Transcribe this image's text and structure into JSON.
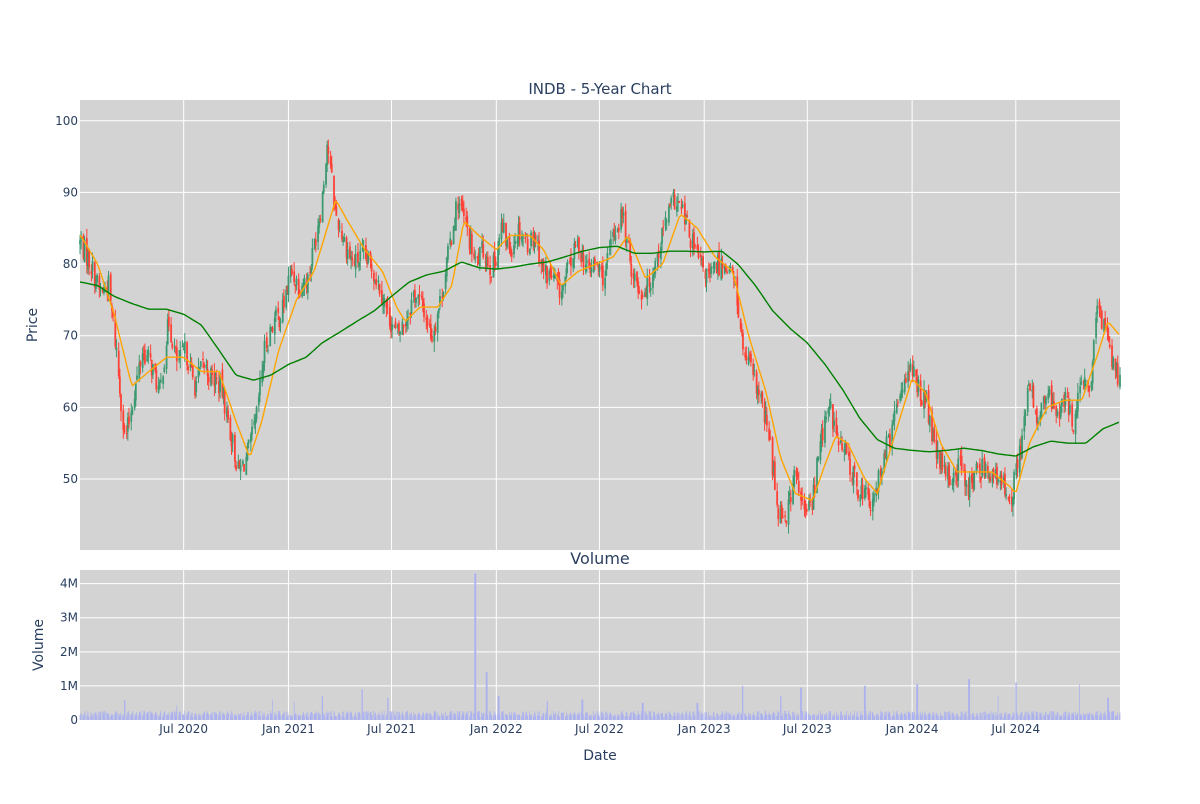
{
  "chart_data": [
    {
      "type": "candlestick",
      "title": "INDB - 5-Year Chart",
      "ylabel": "Price",
      "ylim": [
        40.1,
        102.9
      ],
      "xlim": [
        "2020-01-01",
        "2024-12-31"
      ],
      "yticks": [
        50,
        60,
        70,
        80,
        90,
        100
      ],
      "yticklabels": [
        "50",
        "60",
        "70",
        "80",
        "90",
        "100"
      ],
      "grid": true,
      "legend": "none",
      "colors": {
        "background": "#d3d3d3",
        "up": "#3d9970",
        "down": "#ff4136",
        "ma_short": "#ffa500",
        "ma_long": "#008000",
        "grid": "#ffffff"
      },
      "close_points": [
        [
          "2020-01-02",
          83
        ],
        [
          "2020-01-20",
          80
        ],
        [
          "2020-02-05",
          76
        ],
        [
          "2020-02-20",
          77
        ],
        [
          "2020-03-05",
          68
        ],
        [
          "2020-03-20",
          55
        ],
        [
          "2020-04-05",
          62
        ],
        [
          "2020-04-20",
          68
        ],
        [
          "2020-05-05",
          66
        ],
        [
          "2020-05-20",
          62
        ],
        [
          "2020-06-05",
          72
        ],
        [
          "2020-06-20",
          66
        ],
        [
          "2020-07-05",
          68
        ],
        [
          "2020-07-20",
          63
        ],
        [
          "2020-08-05",
          66
        ],
        [
          "2020-08-20",
          64
        ],
        [
          "2020-09-05",
          63
        ],
        [
          "2020-09-20",
          57
        ],
        [
          "2020-10-05",
          51
        ],
        [
          "2020-10-20",
          53
        ],
        [
          "2020-11-05",
          58
        ],
        [
          "2020-11-20",
          68
        ],
        [
          "2020-12-05",
          72
        ],
        [
          "2020-12-20",
          73
        ],
        [
          "2021-01-05",
          79
        ],
        [
          "2021-01-20",
          77
        ],
        [
          "2021-02-05",
          78
        ],
        [
          "2021-02-20",
          85
        ],
        [
          "2021-03-01",
          89
        ],
        [
          "2021-03-10",
          97
        ],
        [
          "2021-03-25",
          87
        ],
        [
          "2021-04-10",
          83
        ],
        [
          "2021-04-25",
          80
        ],
        [
          "2021-05-10",
          81
        ],
        [
          "2021-05-25",
          80
        ],
        [
          "2021-06-10",
          77
        ],
        [
          "2021-06-25",
          73
        ],
        [
          "2021-07-10",
          70
        ],
        [
          "2021-07-25",
          72
        ],
        [
          "2021-08-10",
          76
        ],
        [
          "2021-08-25",
          74
        ],
        [
          "2021-09-10",
          70
        ],
        [
          "2021-09-25",
          75
        ],
        [
          "2021-10-10",
          82
        ],
        [
          "2021-10-25",
          89
        ],
        [
          "2021-11-10",
          85
        ],
        [
          "2021-11-25",
          80
        ],
        [
          "2021-12-10",
          82
        ],
        [
          "2021-12-25",
          79
        ],
        [
          "2022-01-10",
          85
        ],
        [
          "2022-01-25",
          82
        ],
        [
          "2022-02-10",
          85
        ],
        [
          "2022-02-25",
          83
        ],
        [
          "2022-03-10",
          84
        ],
        [
          "2022-03-25",
          79
        ],
        [
          "2022-04-10",
          78
        ],
        [
          "2022-04-25",
          76
        ],
        [
          "2022-05-10",
          80
        ],
        [
          "2022-05-25",
          83
        ],
        [
          "2022-06-10",
          79
        ],
        [
          "2022-06-25",
          80
        ],
        [
          "2022-07-10",
          78
        ],
        [
          "2022-07-25",
          84
        ],
        [
          "2022-08-10",
          87
        ],
        [
          "2022-08-25",
          80
        ],
        [
          "2022-09-10",
          76
        ],
        [
          "2022-09-25",
          77
        ],
        [
          "2022-10-10",
          81
        ],
        [
          "2022-10-25",
          86
        ],
        [
          "2022-11-10",
          89
        ],
        [
          "2022-11-25",
          87
        ],
        [
          "2022-12-10",
          83
        ],
        [
          "2022-12-25",
          80
        ],
        [
          "2023-01-10",
          78
        ],
        [
          "2023-01-25",
          80
        ],
        [
          "2023-02-10",
          80
        ],
        [
          "2023-02-25",
          77
        ],
        [
          "2023-03-10",
          68
        ],
        [
          "2023-03-25",
          65
        ],
        [
          "2023-04-10",
          61
        ],
        [
          "2023-04-25",
          56
        ],
        [
          "2023-05-10",
          46
        ],
        [
          "2023-05-25",
          45
        ],
        [
          "2023-06-10",
          51
        ],
        [
          "2023-06-25",
          45
        ],
        [
          "2023-07-10",
          47
        ],
        [
          "2023-07-25",
          56
        ],
        [
          "2023-08-10",
          60
        ],
        [
          "2023-08-25",
          55
        ],
        [
          "2023-09-10",
          53
        ],
        [
          "2023-09-25",
          49
        ],
        [
          "2023-10-10",
          48
        ],
        [
          "2023-10-25",
          46
        ],
        [
          "2023-11-10",
          53
        ],
        [
          "2023-11-25",
          56
        ],
        [
          "2023-12-10",
          62
        ],
        [
          "2023-12-25",
          66
        ],
        [
          "2024-01-10",
          63
        ],
        [
          "2024-01-25",
          61
        ],
        [
          "2024-02-10",
          54
        ],
        [
          "2024-02-25",
          51
        ],
        [
          "2024-03-10",
          50
        ],
        [
          "2024-03-25",
          52
        ],
        [
          "2024-04-10",
          49
        ],
        [
          "2024-04-25",
          51
        ],
        [
          "2024-05-10",
          52
        ],
        [
          "2024-05-25",
          50
        ],
        [
          "2024-06-10",
          49
        ],
        [
          "2024-06-25",
          48
        ],
        [
          "2024-07-10",
          55
        ],
        [
          "2024-07-25",
          63
        ],
        [
          "2024-08-10",
          58
        ],
        [
          "2024-08-25",
          62
        ],
        [
          "2024-09-10",
          59
        ],
        [
          "2024-09-25",
          61
        ],
        [
          "2024-10-10",
          58
        ],
        [
          "2024-10-25",
          63
        ],
        [
          "2024-11-10",
          63
        ],
        [
          "2024-11-20",
          73
        ],
        [
          "2024-12-05",
          72
        ],
        [
          "2024-12-20",
          66
        ],
        [
          "2024-12-31",
          64
        ]
      ],
      "ma_short_points": [
        [
          "2020-01-02",
          84
        ],
        [
          "2020-02-01",
          80
        ],
        [
          "2020-03-01",
          73
        ],
        [
          "2020-04-01",
          63
        ],
        [
          "2020-05-01",
          65
        ],
        [
          "2020-06-01",
          67
        ],
        [
          "2020-07-01",
          67
        ],
        [
          "2020-08-01",
          65
        ],
        [
          "2020-09-01",
          65
        ],
        [
          "2020-10-01",
          58
        ],
        [
          "2020-10-25",
          53
        ],
        [
          "2020-11-15",
          58
        ],
        [
          "2020-12-15",
          68
        ],
        [
          "2021-01-15",
          75
        ],
        [
          "2021-02-15",
          79
        ],
        [
          "2021-03-10",
          85
        ],
        [
          "2021-03-25",
          89
        ],
        [
          "2021-04-15",
          86
        ],
        [
          "2021-05-15",
          82
        ],
        [
          "2021-06-15",
          79
        ],
        [
          "2021-07-10",
          74
        ],
        [
          "2021-07-25",
          72
        ],
        [
          "2021-08-20",
          74
        ],
        [
          "2021-09-20",
          74
        ],
        [
          "2021-10-15",
          77
        ],
        [
          "2021-11-05",
          86
        ],
        [
          "2021-12-01",
          84
        ],
        [
          "2022-01-01",
          82
        ],
        [
          "2022-01-25",
          84
        ],
        [
          "2022-03-01",
          84
        ],
        [
          "2022-03-25",
          82
        ],
        [
          "2022-04-25",
          77
        ],
        [
          "2022-05-25",
          79
        ],
        [
          "2022-06-25",
          80
        ],
        [
          "2022-07-25",
          81
        ],
        [
          "2022-08-20",
          84
        ],
        [
          "2022-09-20",
          78
        ],
        [
          "2022-10-20",
          80
        ],
        [
          "2022-11-20",
          87
        ],
        [
          "2022-12-20",
          85
        ],
        [
          "2023-01-20",
          81
        ],
        [
          "2023-02-20",
          79
        ],
        [
          "2023-03-20",
          70
        ],
        [
          "2023-04-20",
          62
        ],
        [
          "2023-05-15",
          53
        ],
        [
          "2023-06-10",
          48
        ],
        [
          "2023-07-10",
          47
        ],
        [
          "2023-08-01",
          52
        ],
        [
          "2023-08-20",
          56
        ],
        [
          "2023-09-10",
          55
        ],
        [
          "2023-10-10",
          50
        ],
        [
          "2023-11-01",
          48
        ],
        [
          "2023-12-01",
          56
        ],
        [
          "2024-01-01",
          64
        ],
        [
          "2024-01-25",
          62
        ],
        [
          "2024-02-20",
          55
        ],
        [
          "2024-03-20",
          51
        ],
        [
          "2024-04-20",
          51
        ],
        [
          "2024-05-20",
          51
        ],
        [
          "2024-06-20",
          49
        ],
        [
          "2024-07-01",
          48
        ],
        [
          "2024-07-25",
          55
        ],
        [
          "2024-08-25",
          60
        ],
        [
          "2024-09-25",
          61
        ],
        [
          "2024-10-25",
          61
        ],
        [
          "2024-11-20",
          67
        ],
        [
          "2024-12-10",
          72
        ],
        [
          "2024-12-31",
          70
        ]
      ],
      "ma_long_points": [
        [
          "2020-01-02",
          77.5
        ],
        [
          "2020-02-01",
          77
        ],
        [
          "2020-03-01",
          75.5
        ],
        [
          "2020-04-01",
          74.5
        ],
        [
          "2020-05-01",
          73.7
        ],
        [
          "2020-06-01",
          73.7
        ],
        [
          "2020-07-01",
          73
        ],
        [
          "2020-08-01",
          71.5
        ],
        [
          "2020-09-01",
          68
        ],
        [
          "2020-10-01",
          64.5
        ],
        [
          "2020-11-01",
          63.8
        ],
        [
          "2020-12-01",
          64.5
        ],
        [
          "2021-01-01",
          66
        ],
        [
          "2021-02-01",
          67
        ],
        [
          "2021-03-01",
          69
        ],
        [
          "2021-04-01",
          70.5
        ],
        [
          "2021-05-01",
          72
        ],
        [
          "2021-06-01",
          73.5
        ],
        [
          "2021-07-01",
          75.5
        ],
        [
          "2021-08-01",
          77.5
        ],
        [
          "2021-09-01",
          78.5
        ],
        [
          "2021-10-01",
          79
        ],
        [
          "2021-11-01",
          80.3
        ],
        [
          "2021-12-01",
          79.5
        ],
        [
          "2022-01-01",
          79.3
        ],
        [
          "2022-02-01",
          79.6
        ],
        [
          "2022-03-01",
          80
        ],
        [
          "2022-04-01",
          80.3
        ],
        [
          "2022-05-01",
          81
        ],
        [
          "2022-06-01",
          81.8
        ],
        [
          "2022-07-01",
          82.3
        ],
        [
          "2022-08-01",
          82.5
        ],
        [
          "2022-09-01",
          81.5
        ],
        [
          "2022-10-01",
          81.5
        ],
        [
          "2022-11-01",
          81.8
        ],
        [
          "2022-12-01",
          81.8
        ],
        [
          "2023-01-01",
          81.7
        ],
        [
          "2023-02-01",
          81.8
        ],
        [
          "2023-03-01",
          80
        ],
        [
          "2023-04-01",
          77
        ],
        [
          "2023-05-01",
          73.5
        ],
        [
          "2023-06-01",
          71
        ],
        [
          "2023-07-01",
          69
        ],
        [
          "2023-08-01",
          66
        ],
        [
          "2023-09-01",
          62.5
        ],
        [
          "2023-10-01",
          58.5
        ],
        [
          "2023-11-01",
          55.5
        ],
        [
          "2023-12-01",
          54.3
        ],
        [
          "2024-01-01",
          54
        ],
        [
          "2024-02-01",
          53.8
        ],
        [
          "2024-03-01",
          54
        ],
        [
          "2024-04-01",
          54.3
        ],
        [
          "2024-05-01",
          54
        ],
        [
          "2024-06-01",
          53.5
        ],
        [
          "2024-07-01",
          53.2
        ],
        [
          "2024-08-01",
          54.5
        ],
        [
          "2024-09-01",
          55.3
        ],
        [
          "2024-10-01",
          55
        ],
        [
          "2024-11-01",
          55
        ],
        [
          "2024-12-01",
          57
        ],
        [
          "2024-12-31",
          58
        ]
      ]
    },
    {
      "type": "bar",
      "title": "Volume",
      "xlabel": "Date",
      "ylabel": "Volume",
      "ylim": [
        0,
        4400000
      ],
      "yticks": [
        0,
        1000000,
        2000000,
        3000000,
        4000000
      ],
      "yticklabels": [
        "0",
        "1M",
        "2M",
        "3M",
        "4M"
      ],
      "xticks": [
        "2020-07-01",
        "2021-01-01",
        "2021-07-01",
        "2022-01-01",
        "2022-07-01",
        "2023-01-01",
        "2023-07-01",
        "2024-01-01",
        "2024-07-01"
      ],
      "xticklabels": [
        "Jul 2020",
        "Jan 2021",
        "Jul 2021",
        "Jan 2022",
        "Jul 2022",
        "Jan 2023",
        "Jul 2023",
        "Jan 2024",
        "Jul 2024"
      ],
      "grid": true,
      "colors": {
        "background": "#d3d3d3",
        "bars": "#aab0f0",
        "grid": "#ffffff"
      },
      "base_level": 180000,
      "spikes": [
        [
          "2020-03-20",
          580000
        ],
        [
          "2020-06-20",
          420000
        ],
        [
          "2020-12-05",
          600000
        ],
        [
          "2021-01-10",
          550000
        ],
        [
          "2021-03-01",
          700000
        ],
        [
          "2021-05-10",
          900000
        ],
        [
          "2021-06-25",
          650000
        ],
        [
          "2021-11-25",
          4300000
        ],
        [
          "2021-12-15",
          1400000
        ],
        [
          "2022-01-05",
          700000
        ],
        [
          "2022-04-01",
          550000
        ],
        [
          "2022-06-01",
          600000
        ],
        [
          "2022-09-15",
          500000
        ],
        [
          "2022-12-20",
          500000
        ],
        [
          "2023-03-10",
          1000000
        ],
        [
          "2023-05-15",
          700000
        ],
        [
          "2023-06-20",
          950000
        ],
        [
          "2023-10-10",
          1000000
        ],
        [
          "2024-01-10",
          1050000
        ],
        [
          "2024-04-10",
          1200000
        ],
        [
          "2024-06-01",
          700000
        ],
        [
          "2024-07-01",
          1100000
        ],
        [
          "2024-10-20",
          1050000
        ],
        [
          "2024-12-10",
          650000
        ]
      ]
    }
  ]
}
